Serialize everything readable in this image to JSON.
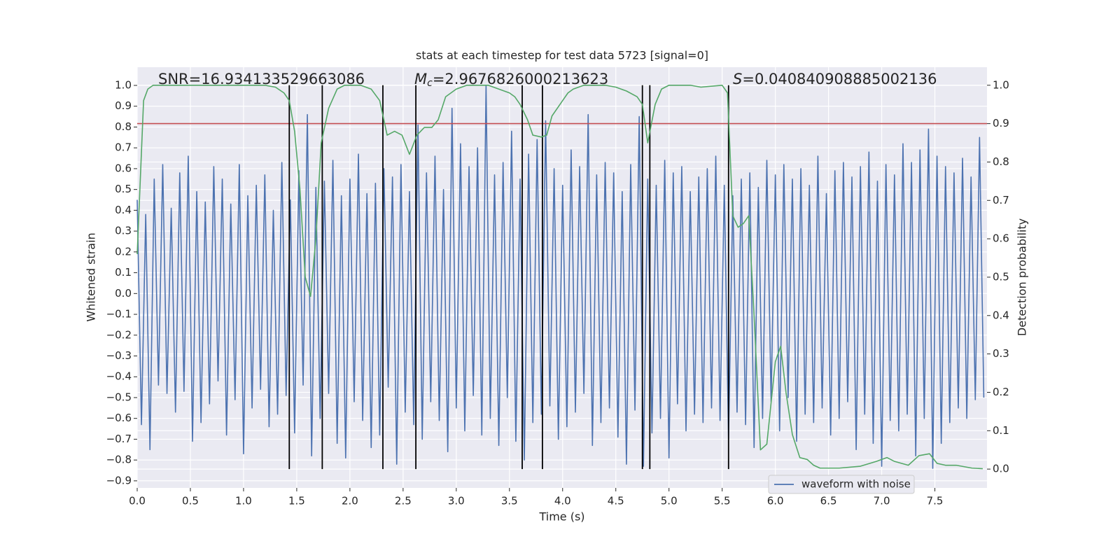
{
  "chart_data": {
    "type": "line",
    "title": "stats at each timestep for test data 5723 [signal=0]",
    "xlabel": "Time (s)",
    "ylabel": "Whitened strain",
    "y2label": "Detection probability",
    "xlim": [
      0,
      7.99
    ],
    "ylim": [
      -0.934,
      1.0875
    ],
    "y2lim": [
      -0.049,
      1.047
    ],
    "xticks": [
      {
        "value": 0,
        "label": "0.0"
      },
      {
        "value": 0.5,
        "label": "0.5"
      },
      {
        "value": 1,
        "label": "1.0"
      },
      {
        "value": 1.5,
        "label": "1.5"
      },
      {
        "value": 2,
        "label": "2.0"
      },
      {
        "value": 2.5,
        "label": "2.5"
      },
      {
        "value": 3,
        "label": "3.0"
      },
      {
        "value": 3.5,
        "label": "3.5"
      },
      {
        "value": 4,
        "label": "4.0"
      },
      {
        "value": 4.5,
        "label": "4.5"
      },
      {
        "value": 5,
        "label": "5.0"
      },
      {
        "value": 5.5,
        "label": "5.5"
      },
      {
        "value": 6,
        "label": "6.0"
      },
      {
        "value": 6.5,
        "label": "6.5"
      },
      {
        "value": 7,
        "label": "7.0"
      },
      {
        "value": 7.5,
        "label": "7.5"
      }
    ],
    "yticks": [
      {
        "value": -0.9,
        "label": "−0.9"
      },
      {
        "value": -0.8,
        "label": "−0.8"
      },
      {
        "value": -0.7,
        "label": "−0.7"
      },
      {
        "value": -0.6,
        "label": "−0.6"
      },
      {
        "value": -0.5,
        "label": "−0.5"
      },
      {
        "value": -0.4,
        "label": "−0.4"
      },
      {
        "value": -0.3,
        "label": "−0.3"
      },
      {
        "value": -0.2,
        "label": "−0.2"
      },
      {
        "value": -0.1,
        "label": "−0.1"
      },
      {
        "value": 0,
        "label": "0.0"
      },
      {
        "value": 0.1,
        "label": "0.1"
      },
      {
        "value": 0.2,
        "label": "0.2"
      },
      {
        "value": 0.3,
        "label": "0.3"
      },
      {
        "value": 0.4,
        "label": "0.4"
      },
      {
        "value": 0.5,
        "label": "0.5"
      },
      {
        "value": 0.6,
        "label": "0.6"
      },
      {
        "value": 0.7,
        "label": "0.7"
      },
      {
        "value": 0.8,
        "label": "0.8"
      },
      {
        "value": 0.9,
        "label": "0.9"
      },
      {
        "value": 1,
        "label": "1.0"
      }
    ],
    "y2ticks": [
      {
        "value": 0,
        "label": "0.0"
      },
      {
        "value": 0.1,
        "label": "0.1"
      },
      {
        "value": 0.2,
        "label": "0.2"
      },
      {
        "value": 0.3,
        "label": "0.3"
      },
      {
        "value": 0.4,
        "label": "0.4"
      },
      {
        "value": 0.5,
        "label": "0.5"
      },
      {
        "value": 0.6,
        "label": "0.6"
      },
      {
        "value": 0.7,
        "label": "0.7"
      },
      {
        "value": 0.8,
        "label": "0.8"
      },
      {
        "value": 0.9,
        "label": "0.9"
      },
      {
        "value": 1,
        "label": "1.0"
      }
    ],
    "grid": true,
    "annotations": [
      {
        "parts": [
          "SNR=16.934133529663086"
        ]
      },
      {
        "parts": [
          "M",
          "c",
          "=2.9676826000213623"
        ]
      },
      {
        "parts": [
          "S",
          "=0.040840908885002136"
        ]
      }
    ],
    "series": [
      {
        "name": "waveform with noise",
        "color": "#4c72b0",
        "x": [
          0,
          0.04,
          0.08,
          0.12,
          0.16,
          0.2,
          0.24,
          0.28,
          0.32,
          0.36,
          0.4,
          0.44,
          0.48,
          0.52,
          0.56,
          0.6,
          0.64,
          0.68,
          0.72,
          0.76,
          0.8,
          0.84,
          0.88,
          0.92,
          0.96,
          1,
          1.04,
          1.08,
          1.12,
          1.16,
          1.2,
          1.24,
          1.28,
          1.32,
          1.36,
          1.4,
          1.44,
          1.48,
          1.52,
          1.56,
          1.6,
          1.64,
          1.68,
          1.72,
          1.76,
          1.8,
          1.84,
          1.88,
          1.92,
          1.96,
          2,
          2.04,
          2.08,
          2.12,
          2.16,
          2.2,
          2.24,
          2.28,
          2.32,
          2.36,
          2.4,
          2.44,
          2.48,
          2.52,
          2.56,
          2.6,
          2.64,
          2.68,
          2.72,
          2.76,
          2.8,
          2.84,
          2.88,
          2.92,
          2.96,
          3,
          3.04,
          3.08,
          3.12,
          3.16,
          3.2,
          3.24,
          3.28,
          3.32,
          3.36,
          3.4,
          3.44,
          3.48,
          3.52,
          3.56,
          3.6,
          3.64,
          3.68,
          3.72,
          3.76,
          3.8,
          3.84,
          3.88,
          3.92,
          3.96,
          4,
          4.04,
          4.08,
          4.12,
          4.16,
          4.2,
          4.24,
          4.28,
          4.32,
          4.36,
          4.4,
          4.44,
          4.48,
          4.52,
          4.56,
          4.6,
          4.64,
          4.68,
          4.72,
          4.76,
          4.8,
          4.84,
          4.88,
          4.92,
          4.96,
          5,
          5.04,
          5.08,
          5.12,
          5.16,
          5.2,
          5.24,
          5.28,
          5.32,
          5.36,
          5.4,
          5.44,
          5.48,
          5.52,
          5.56,
          5.6,
          5.64,
          5.68,
          5.72,
          5.76,
          5.8,
          5.84,
          5.88,
          5.92,
          5.96,
          6,
          6.04,
          6.08,
          6.12,
          6.16,
          6.2,
          6.24,
          6.28,
          6.32,
          6.36,
          6.4,
          6.44,
          6.48,
          6.52,
          6.56,
          6.6,
          6.64,
          6.68,
          6.72,
          6.76,
          6.8,
          6.84,
          6.88,
          6.92,
          6.96,
          7,
          7.04,
          7.08,
          7.12,
          7.16,
          7.2,
          7.24,
          7.28,
          7.32,
          7.36,
          7.4,
          7.44,
          7.48,
          7.52,
          7.56,
          7.6,
          7.64,
          7.68,
          7.72,
          7.76,
          7.8,
          7.84,
          7.88,
          7.92,
          7.96
        ],
        "values": [
          0.45,
          -0.63,
          0.38,
          -0.75,
          0.55,
          -0.44,
          0.62,
          -0.48,
          0.41,
          -0.57,
          0.58,
          -0.47,
          0.66,
          -0.71,
          0.49,
          -0.62,
          0.44,
          -0.53,
          0.61,
          -0.42,
          0.55,
          -0.68,
          0.43,
          -0.51,
          0.62,
          -0.77,
          0.47,
          -0.55,
          0.52,
          -0.46,
          0.57,
          -0.64,
          0.4,
          -0.58,
          0.63,
          -0.49,
          0.45,
          -0.67,
          0.59,
          -0.44,
          0.86,
          -0.78,
          0.51,
          -0.6,
          0.54,
          -0.48,
          0.64,
          -0.72,
          0.47,
          -0.79,
          0.55,
          -0.52,
          0.67,
          -0.61,
          0.48,
          -0.74,
          0.53,
          -0.68,
          0.6,
          -0.45,
          0.56,
          -0.82,
          0.62,
          -0.57,
          0.49,
          -0.63,
          0.81,
          -0.7,
          0.58,
          -0.52,
          0.66,
          -0.61,
          0.5,
          -0.76,
          0.89,
          -0.55,
          0.72,
          -0.66,
          0.61,
          -0.49,
          0.7,
          -0.68,
          1.0,
          -0.6,
          0.57,
          -0.73,
          0.63,
          -0.5,
          0.78,
          -0.71,
          0.55,
          -0.8,
          0.67,
          -0.62,
          0.74,
          -0.58,
          0.83,
          -0.54,
          0.6,
          -0.7,
          0.52,
          -0.64,
          0.69,
          -0.57,
          0.61,
          -0.48,
          0.86,
          -0.73,
          0.57,
          -0.62,
          0.63,
          -0.55,
          0.58,
          -0.69,
          0.49,
          -0.82,
          0.62,
          -0.56,
          0.85,
          -0.83,
          0.55,
          -0.67,
          0.52,
          -0.6,
          0.64,
          -0.79,
          0.58,
          -0.53,
          0.61,
          -0.66,
          0.49,
          -0.58,
          0.56,
          -0.62,
          0.6,
          -0.55,
          0.66,
          -0.61,
          0.52,
          -0.7,
          0.47,
          -0.57,
          0.55,
          -0.63,
          0.58,
          -0.74,
          0.51,
          -0.6,
          0.64,
          -0.52,
          0.57,
          -0.66,
          0.62,
          -0.5,
          0.55,
          -0.71,
          0.6,
          -0.58,
          0.52,
          -0.62,
          0.66,
          -0.55,
          0.48,
          -0.68,
          0.59,
          -0.6,
          0.63,
          -0.52,
          0.56,
          -0.75,
          0.61,
          -0.58,
          0.68,
          -0.72,
          0.54,
          -0.83,
          0.62,
          -0.61,
          0.57,
          -0.66,
          0.72,
          -0.58,
          0.63,
          -0.78,
          0.69,
          -0.6,
          0.79,
          -0.84,
          0.66,
          -0.72,
          0.61,
          -0.62,
          0.58,
          -0.55,
          0.65,
          -0.6,
          0.56,
          -0.51,
          0.75,
          -0.5
        ]
      },
      {
        "color": "#55a868",
        "axis": "y2",
        "x": [
          0,
          0.06,
          0.1,
          0.15,
          0.5,
          1,
          1.2,
          1.3,
          1.38,
          1.43,
          1.48,
          1.53,
          1.58,
          1.63,
          1.68,
          1.73,
          1.8,
          1.88,
          1.95,
          2.1,
          2.2,
          2.28,
          2.35,
          2.42,
          2.49,
          2.56,
          2.63,
          2.7,
          2.77,
          2.83,
          2.9,
          3,
          3.1,
          3.3,
          3.4,
          3.5,
          3.55,
          3.6,
          3.67,
          3.72,
          3.8,
          3.85,
          3.9,
          4,
          4.05,
          4.1,
          4.2,
          4.4,
          4.5,
          4.6,
          4.7,
          4.75,
          4.8,
          4.87,
          4.93,
          5,
          5.2,
          5.3,
          5.5,
          5.55,
          5.6,
          5.65,
          5.7,
          5.75,
          5.8,
          5.86,
          5.92,
          6,
          6.05,
          6.1,
          6.16,
          6.23,
          6.3,
          6.36,
          6.42,
          6.6,
          6.8,
          6.95,
          7.05,
          7.12,
          7.25,
          7.35,
          7.45,
          7.52,
          7.6,
          7.7,
          7.85,
          7.95
        ],
        "values": [
          0.56,
          0.96,
          0.99,
          1.0,
          1.0,
          1.0,
          1.0,
          0.995,
          0.98,
          0.96,
          0.88,
          0.73,
          0.5,
          0.45,
          0.6,
          0.85,
          0.94,
          0.99,
          1.0,
          1.0,
          0.99,
          0.96,
          0.87,
          0.88,
          0.87,
          0.82,
          0.87,
          0.89,
          0.89,
          0.91,
          0.97,
          0.99,
          1.0,
          1.0,
          0.99,
          0.98,
          0.97,
          0.95,
          0.91,
          0.87,
          0.865,
          0.87,
          0.92,
          0.96,
          0.98,
          0.99,
          1.0,
          1.0,
          0.995,
          0.985,
          0.97,
          0.95,
          0.85,
          0.95,
          0.99,
          1.0,
          1.0,
          0.995,
          1.0,
          0.98,
          0.66,
          0.63,
          0.64,
          0.66,
          0.4,
          0.05,
          0.065,
          0.28,
          0.32,
          0.2,
          0.09,
          0.03,
          0.025,
          0.01,
          0.0025,
          0.0025,
          0.0075,
          0.02,
          0.03,
          0.02,
          0.01,
          0.035,
          0.04,
          0.015,
          0.01,
          0.01,
          0.0025,
          0.001
        ]
      }
    ],
    "hline": {
      "y": 0.9,
      "axis": "y2",
      "color": "#c44e52"
    },
    "vlines": {
      "x": [
        1.43,
        1.74,
        2.31,
        2.62,
        3.62,
        3.81,
        4.75,
        4.82,
        5.56
      ],
      "ymin": 0,
      "ymax": 1,
      "axis": "y2",
      "color": "#000000"
    },
    "legend": "lower right"
  }
}
